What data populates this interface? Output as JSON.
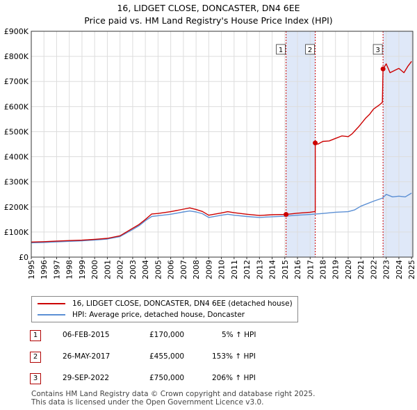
{
  "chart_data": {
    "type": "line",
    "title": "16, LIDGET CLOSE, DONCASTER, DN4 6EE",
    "subtitle": "Price paid vs. HM Land Registry's House Price Index (HPI)",
    "x_ticks": [
      "1995",
      "1996",
      "1997",
      "1998",
      "1999",
      "2000",
      "2001",
      "2002",
      "2003",
      "2004",
      "2005",
      "2006",
      "2007",
      "2008",
      "2009",
      "2010",
      "2011",
      "2012",
      "2013",
      "2014",
      "2015",
      "2016",
      "2017",
      "2018",
      "2019",
      "2020",
      "2021",
      "2022",
      "2023",
      "2024",
      "2025"
    ],
    "y_ticks": [
      {
        "value": 0,
        "label": "£0"
      },
      {
        "value": 100000,
        "label": "£100K"
      },
      {
        "value": 200000,
        "label": "£200K"
      },
      {
        "value": 300000,
        "label": "£300K"
      },
      {
        "value": 400000,
        "label": "£400K"
      },
      {
        "value": 500000,
        "label": "£500K"
      },
      {
        "value": 600000,
        "label": "£600K"
      },
      {
        "value": 700000,
        "label": "£700K"
      },
      {
        "value": 800000,
        "label": "£800K"
      },
      {
        "value": 900000,
        "label": "£900K"
      }
    ],
    "xlim": [
      1995,
      2025.1
    ],
    "ylim": [
      0,
      900000
    ],
    "colors": {
      "price": "#cc0000",
      "hpi": "#5b8fd4",
      "band": "#dfe8f8",
      "marker_line": "#cc0000",
      "grid": "#dddddd"
    },
    "series": [
      {
        "name": "16, LIDGET CLOSE, DONCASTER, DN4 6EE (detached house)",
        "color": "#cc0000",
        "points": [
          [
            1995,
            60000
          ],
          [
            1996,
            61500
          ],
          [
            1997,
            64000
          ],
          [
            1998,
            65800
          ],
          [
            1999,
            67700
          ],
          [
            2000,
            71000
          ],
          [
            2001,
            74900
          ],
          [
            2002,
            85000
          ],
          [
            2003,
            115000
          ],
          [
            2003.5,
            130000
          ],
          [
            2004,
            150000
          ],
          [
            2004.5,
            172000
          ],
          [
            2005,
            174000
          ],
          [
            2006,
            181000
          ],
          [
            2007,
            191000
          ],
          [
            2007.5,
            196000
          ],
          [
            2008,
            190000
          ],
          [
            2008.5,
            182000
          ],
          [
            2009,
            167000
          ],
          [
            2010,
            176000
          ],
          [
            2010.5,
            181000
          ],
          [
            2011,
            177000
          ],
          [
            2012,
            171000
          ],
          [
            2013,
            166000
          ],
          [
            2014,
            169000
          ],
          [
            2015.1,
            170000
          ],
          [
            2016,
            175000
          ],
          [
            2017,
            179000
          ],
          [
            2017.4,
            182000
          ],
          [
            2017.4,
            455000
          ],
          [
            2017.6,
            450000
          ],
          [
            2018,
            461000
          ],
          [
            2018.5,
            463000
          ],
          [
            2019,
            473000
          ],
          [
            2019.5,
            483000
          ],
          [
            2020,
            480000
          ],
          [
            2020.3,
            491000
          ],
          [
            2020.8,
            518000
          ],
          [
            2021,
            530000
          ],
          [
            2021.4,
            555000
          ],
          [
            2021.7,
            570000
          ],
          [
            2022,
            590000
          ],
          [
            2022.5,
            608000
          ],
          [
            2022.7,
            617000
          ],
          [
            2022.75,
            750000
          ],
          [
            2023,
            770000
          ],
          [
            2023.3,
            735000
          ],
          [
            2023.7,
            745000
          ],
          [
            2024,
            752000
          ],
          [
            2024.4,
            735000
          ],
          [
            2024.7,
            760000
          ],
          [
            2025,
            780000
          ]
        ]
      },
      {
        "name": "HPI: Average price, detached house, Doncaster",
        "color": "#5b8fd4",
        "points": [
          [
            1995,
            57000
          ],
          [
            1996,
            58500
          ],
          [
            1997,
            61000
          ],
          [
            1998,
            63000
          ],
          [
            1999,
            65000
          ],
          [
            2000,
            68000
          ],
          [
            2001,
            72000
          ],
          [
            2002,
            82000
          ],
          [
            2003,
            110000
          ],
          [
            2003.5,
            125000
          ],
          [
            2004,
            145000
          ],
          [
            2004.5,
            162000
          ],
          [
            2005,
            165000
          ],
          [
            2006,
            171000
          ],
          [
            2007,
            180000
          ],
          [
            2007.5,
            184000
          ],
          [
            2008,
            180000
          ],
          [
            2008.5,
            173000
          ],
          [
            2009,
            158000
          ],
          [
            2010,
            167000
          ],
          [
            2010.5,
            171000
          ],
          [
            2011,
            167000
          ],
          [
            2012,
            162000
          ],
          [
            2013,
            158000
          ],
          [
            2014,
            161000
          ],
          [
            2015,
            163000
          ],
          [
            2016,
            167000
          ],
          [
            2017,
            170000
          ],
          [
            2018,
            174000
          ],
          [
            2019,
            179000
          ],
          [
            2020,
            181000
          ],
          [
            2020.5,
            188000
          ],
          [
            2021,
            203000
          ],
          [
            2022,
            223000
          ],
          [
            2022.7,
            235000
          ],
          [
            2023,
            250000
          ],
          [
            2023.5,
            240000
          ],
          [
            2024,
            243000
          ],
          [
            2024.5,
            240000
          ],
          [
            2025,
            255000
          ]
        ]
      }
    ],
    "sales": [
      {
        "id": "1",
        "date": "06-FEB-2015",
        "price": "£170,000",
        "hpi_change": "5% ↑ HPI",
        "x": 2015.1,
        "y": 170000
      },
      {
        "id": "2",
        "date": "26-MAY-2017",
        "price": "£455,000",
        "hpi_change": "153% ↑ HPI",
        "x": 2017.4,
        "y": 455000
      },
      {
        "id": "3",
        "date": "29-SEP-2022",
        "price": "£750,000",
        "hpi_change": "206% ↑ HPI",
        "x": 2022.75,
        "y": 750000
      }
    ],
    "shaded_bands": [
      [
        2015.1,
        2017.4
      ],
      [
        2022.75,
        2025.1
      ]
    ]
  },
  "legend": {
    "price_label": "16, LIDGET CLOSE, DONCASTER, DN4 6EE (detached house)",
    "hpi_label": "HPI: Average price, detached house, Doncaster"
  },
  "footer": {
    "line1": "Contains HM Land Registry data © Crown copyright and database right 2025.",
    "line2": "This data is licensed under the Open Government Licence v3.0."
  }
}
